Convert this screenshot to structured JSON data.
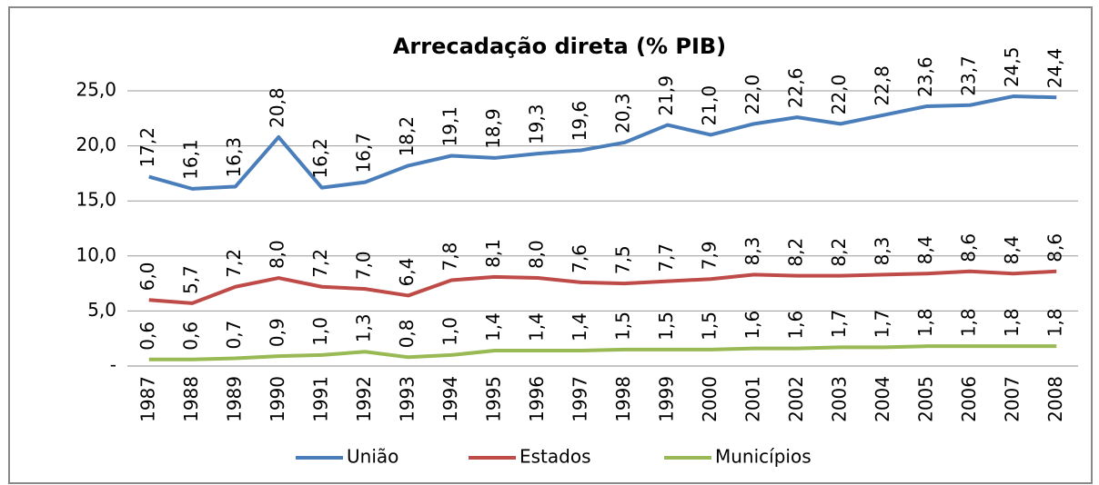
{
  "chart_data": {
    "type": "line",
    "title": "Arrecadação direta (% PIB)",
    "categories": [
      "1987",
      "1988",
      "1989",
      "1990",
      "1991",
      "1992",
      "1993",
      "1994",
      "1995",
      "1996",
      "1997",
      "1998",
      "1999",
      "2000",
      "2001",
      "2002",
      "2003",
      "2004",
      "2005",
      "2006",
      "2007",
      "2008"
    ],
    "series": [
      {
        "name": "União",
        "color": "#4a7ebb",
        "values": [
          17.2,
          16.1,
          16.3,
          20.8,
          16.2,
          16.7,
          18.2,
          19.1,
          18.9,
          19.3,
          19.6,
          20.3,
          21.9,
          21.0,
          22.0,
          22.6,
          22.0,
          22.8,
          23.6,
          23.7,
          24.5,
          24.4
        ],
        "value_labels": [
          "17,2",
          "16,1",
          "16,3",
          "20,8",
          "16,2",
          "16,7",
          "18,2",
          "19,1",
          "18,9",
          "19,3",
          "19,6",
          "20,3",
          "21,9",
          "21,0",
          "22,0",
          "22,6",
          "22,0",
          "22,8",
          "23,6",
          "23,7",
          "24,5",
          "24,4"
        ]
      },
      {
        "name": "Estados",
        "color": "#be4b48",
        "values": [
          6.0,
          5.7,
          7.2,
          8.0,
          7.2,
          7.0,
          6.4,
          7.8,
          8.1,
          8.0,
          7.6,
          7.5,
          7.7,
          7.9,
          8.3,
          8.2,
          8.2,
          8.3,
          8.4,
          8.6,
          8.4,
          8.6
        ],
        "value_labels": [
          "6,0",
          "5,7",
          "7,2",
          "8,0",
          "7,2",
          "7,0",
          "6,4",
          "7,8",
          "8,1",
          "8,0",
          "7,6",
          "7,5",
          "7,7",
          "7,9",
          "8,3",
          "8,2",
          "8,2",
          "8,3",
          "8,4",
          "8,6",
          "8,4",
          "8,6"
        ]
      },
      {
        "name": "Municípios",
        "color": "#98b954",
        "values": [
          0.6,
          0.6,
          0.7,
          0.9,
          1.0,
          1.3,
          0.8,
          1.0,
          1.4,
          1.4,
          1.4,
          1.5,
          1.5,
          1.5,
          1.6,
          1.6,
          1.7,
          1.7,
          1.8,
          1.8,
          1.8,
          1.8
        ],
        "value_labels": [
          "0,6",
          "0,6",
          "0,7",
          "0,9",
          "1,0",
          "1,3",
          "0,8",
          "1,0",
          "1,4",
          "1,4",
          "1,4",
          "1,5",
          "1,5",
          "1,5",
          "1,6",
          "1,6",
          "1,7",
          "1,7",
          "1,8",
          "1,8",
          "1,8",
          "1,8"
        ]
      }
    ],
    "ylim": [
      0,
      25
    ],
    "yticks": [
      {
        "value": 0,
        "label": "-"
      },
      {
        "value": 5,
        "label": "5,0"
      },
      {
        "value": 10,
        "label": "10,0"
      },
      {
        "value": 15,
        "label": "15,0"
      },
      {
        "value": 20,
        "label": "20,0"
      },
      {
        "value": 25,
        "label": "25,0"
      }
    ],
    "grid": true,
    "legend": "bottom"
  }
}
